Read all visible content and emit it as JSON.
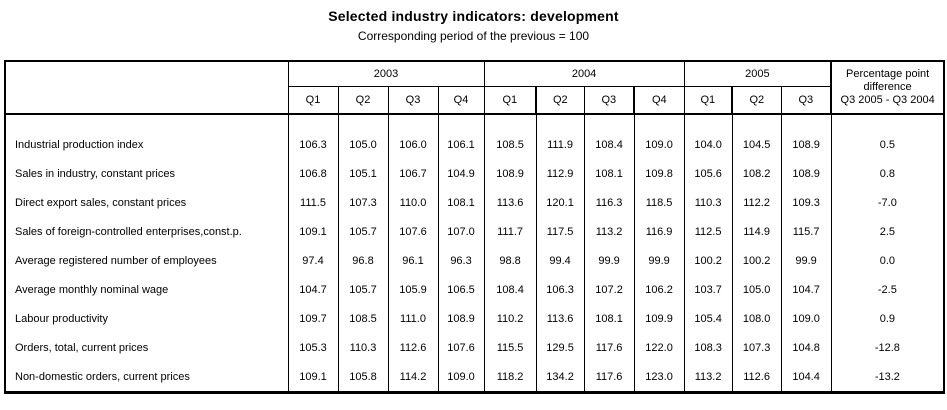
{
  "page": {
    "title": "Selected industry indicators: development",
    "subtitle": "Corresponding period of the previous = 100"
  },
  "colors": {
    "background": "#ffffff",
    "text": "#000000",
    "border": "#000000"
  },
  "table": {
    "year_headers": [
      "2003",
      "2004",
      "2005"
    ],
    "quarter_labels": [
      "Q1",
      "Q2",
      "Q3",
      "Q4",
      "Q1",
      "Q2",
      "Q3",
      "Q4",
      "Q1",
      "Q2",
      "Q3"
    ],
    "diff_header": {
      "line1": "Percentage point",
      "line2": "difference",
      "line3": "Q3 2005 - Q3 2004"
    },
    "rows": [
      {
        "label": "Industrial production index",
        "values": [
          "106.3",
          "105.0",
          "106.0",
          "106.1",
          "108.5",
          "111.9",
          "108.4",
          "109.0",
          "104.0",
          "104.5",
          "108.9",
          "0.5"
        ]
      },
      {
        "label": "Sales in industry, constant prices",
        "values": [
          "106.8",
          "105.1",
          "106.7",
          "104.9",
          "108.9",
          "112.9",
          "108.1",
          "109.8",
          "105.6",
          "108.2",
          "108.9",
          "0.8"
        ]
      },
      {
        "label": "Direct export sales, constant prices",
        "values": [
          "111.5",
          "107.3",
          "110.0",
          "108.1",
          "113.6",
          "120.1",
          "116.3",
          "118.5",
          "110.3",
          "112.2",
          "109.3",
          "-7.0"
        ]
      },
      {
        "label": "Sales of foreign-controlled enterprises,const.p.",
        "values": [
          "109.1",
          "105.7",
          "107.6",
          "107.0",
          "111.7",
          "117.5",
          "113.2",
          "116.9",
          "112.5",
          "114.9",
          "115.7",
          "2.5"
        ]
      },
      {
        "label": "Average registered number of employees",
        "values": [
          "97.4",
          "96.8",
          "96.1",
          "96.3",
          "98.8",
          "99.4",
          "99.9",
          "99.9",
          "100.2",
          "100.2",
          "99.9",
          "0.0"
        ]
      },
      {
        "label": "Average monthly nominal wage",
        "values": [
          "104.7",
          "105.7",
          "105.9",
          "106.5",
          "108.4",
          "106.3",
          "107.2",
          "106.2",
          "103.7",
          "105.0",
          "104.7",
          "-2.5"
        ]
      },
      {
        "label": "Labour productivity",
        "values": [
          "109.7",
          "108.5",
          "111.0",
          "108.9",
          "110.2",
          "113.6",
          "108.1",
          "109.9",
          "105.4",
          "108.0",
          "109.0",
          "0.9"
        ]
      },
      {
        "label": "Orders, total, current prices",
        "values": [
          "105.3",
          "110.3",
          "112.6",
          "107.6",
          "115.5",
          "129.5",
          "117.6",
          "122.0",
          "108.3",
          "107.3",
          "104.8",
          "-12.8"
        ]
      },
      {
        "label": "Non-domestic orders, current prices",
        "values": [
          "109.1",
          "105.8",
          "114.2",
          "109.0",
          "118.2",
          "134.2",
          "117.6",
          "123.0",
          "113.2",
          "112.6",
          "104.4",
          "-13.2"
        ]
      }
    ]
  }
}
